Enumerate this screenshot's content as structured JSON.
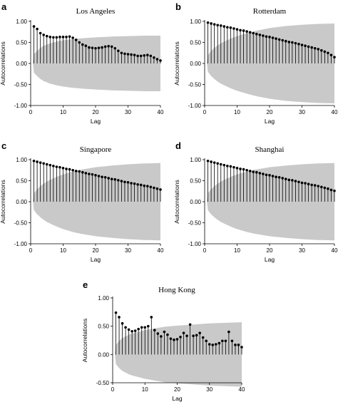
{
  "chart_data": [
    {
      "type": "stem",
      "panel_letter": "a",
      "title": "Los Angeles",
      "xlabel": "Lag",
      "ylabel": "Autocorrelations",
      "xlim": [
        0,
        40
      ],
      "ylim": [
        -1.0,
        1.0
      ],
      "xticks": [
        "0",
        "10",
        "20",
        "30",
        "40"
      ],
      "yticks": [
        "-1.00",
        "-0.50",
        "0.00",
        "0.50",
        "1.00"
      ],
      "x": [
        1,
        2,
        3,
        4,
        5,
        6,
        7,
        8,
        9,
        10,
        11,
        12,
        13,
        14,
        15,
        16,
        17,
        18,
        19,
        20,
        21,
        22,
        23,
        24,
        25,
        26,
        27,
        28,
        29,
        30,
        31,
        32,
        33,
        34,
        35,
        36,
        37,
        38,
        39,
        40
      ],
      "values": [
        0.88,
        0.82,
        0.72,
        0.68,
        0.65,
        0.63,
        0.62,
        0.62,
        0.63,
        0.63,
        0.63,
        0.64,
        0.61,
        0.56,
        0.5,
        0.45,
        0.42,
        0.38,
        0.37,
        0.36,
        0.37,
        0.38,
        0.4,
        0.41,
        0.4,
        0.36,
        0.3,
        0.25,
        0.23,
        0.22,
        0.21,
        0.2,
        0.18,
        0.18,
        0.19,
        0.2,
        0.18,
        0.14,
        0.1,
        0.07
      ],
      "confidence_band": {
        "x": [
          1,
          2,
          3,
          4,
          5,
          6,
          8,
          10,
          13,
          16,
          20,
          25,
          30,
          35,
          40
        ],
        "upper": [
          0.22,
          0.3,
          0.37,
          0.42,
          0.45,
          0.48,
          0.52,
          0.55,
          0.58,
          0.6,
          0.62,
          0.64,
          0.65,
          0.66,
          0.66
        ]
      }
    },
    {
      "type": "stem",
      "panel_letter": "b",
      "title": "Rotterdam",
      "xlabel": "Lag",
      "ylabel": "Autocorrelations",
      "xlim": [
        0,
        40
      ],
      "ylim": [
        -1.0,
        1.0
      ],
      "xticks": [
        "0",
        "10",
        "20",
        "30",
        "40"
      ],
      "yticks": [
        "-1.00",
        "-0.50",
        "0.00",
        "0.50",
        "1.00"
      ],
      "x": [
        1,
        2,
        3,
        4,
        5,
        6,
        7,
        8,
        9,
        10,
        11,
        12,
        13,
        14,
        15,
        16,
        17,
        18,
        19,
        20,
        21,
        22,
        23,
        24,
        25,
        26,
        27,
        28,
        29,
        30,
        31,
        32,
        33,
        34,
        35,
        36,
        37,
        38,
        39,
        40
      ],
      "values": [
        0.97,
        0.95,
        0.93,
        0.91,
        0.9,
        0.88,
        0.86,
        0.85,
        0.83,
        0.81,
        0.79,
        0.78,
        0.76,
        0.74,
        0.72,
        0.7,
        0.68,
        0.66,
        0.64,
        0.63,
        0.61,
        0.59,
        0.57,
        0.55,
        0.53,
        0.51,
        0.5,
        0.48,
        0.46,
        0.44,
        0.42,
        0.4,
        0.38,
        0.36,
        0.34,
        0.31,
        0.28,
        0.25,
        0.2,
        0.15
      ],
      "confidence_band": {
        "x": [
          1,
          2,
          3,
          4,
          5,
          6,
          8,
          10,
          13,
          16,
          20,
          25,
          30,
          35,
          40
        ],
        "upper": [
          0.2,
          0.3,
          0.37,
          0.43,
          0.48,
          0.52,
          0.59,
          0.65,
          0.72,
          0.78,
          0.84,
          0.89,
          0.92,
          0.94,
          0.95
        ]
      }
    },
    {
      "type": "stem",
      "panel_letter": "c",
      "title": "Singapore",
      "xlabel": "Lag",
      "ylabel": "Autocorrelations",
      "xlim": [
        0,
        40
      ],
      "ylim": [
        -1.0,
        1.0
      ],
      "xticks": [
        "0",
        "10",
        "20",
        "30",
        "40"
      ],
      "yticks": [
        "-1.00",
        "-0.50",
        "0.00",
        "0.50",
        "1.00"
      ],
      "x": [
        1,
        2,
        3,
        4,
        5,
        6,
        7,
        8,
        9,
        10,
        11,
        12,
        13,
        14,
        15,
        16,
        17,
        18,
        19,
        20,
        21,
        22,
        23,
        24,
        25,
        26,
        27,
        28,
        29,
        30,
        31,
        32,
        33,
        34,
        35,
        36,
        37,
        38,
        39,
        40
      ],
      "values": [
        0.97,
        0.95,
        0.93,
        0.91,
        0.89,
        0.87,
        0.85,
        0.83,
        0.82,
        0.8,
        0.78,
        0.77,
        0.75,
        0.73,
        0.72,
        0.7,
        0.68,
        0.66,
        0.65,
        0.63,
        0.61,
        0.59,
        0.58,
        0.56,
        0.54,
        0.53,
        0.51,
        0.49,
        0.47,
        0.46,
        0.44,
        0.43,
        0.41,
        0.4,
        0.38,
        0.37,
        0.35,
        0.33,
        0.31,
        0.29
      ],
      "confidence_band": {
        "x": [
          1,
          2,
          3,
          4,
          5,
          6,
          8,
          10,
          13,
          16,
          20,
          25,
          30,
          35,
          40
        ],
        "upper": [
          0.2,
          0.3,
          0.37,
          0.43,
          0.48,
          0.52,
          0.59,
          0.65,
          0.72,
          0.77,
          0.82,
          0.86,
          0.89,
          0.91,
          0.92
        ]
      }
    },
    {
      "type": "stem",
      "panel_letter": "d",
      "title": "Shanghai",
      "xlabel": "Lag",
      "ylabel": "Autocorrelations",
      "xlim": [
        0,
        40
      ],
      "ylim": [
        -1.0,
        1.0
      ],
      "xticks": [
        "0",
        "10",
        "20",
        "30",
        "40"
      ],
      "yticks": [
        "-1.00",
        "-0.50",
        "0.00",
        "0.50",
        "1.00"
      ],
      "x": [
        1,
        2,
        3,
        4,
        5,
        6,
        7,
        8,
        9,
        10,
        11,
        12,
        13,
        14,
        15,
        16,
        17,
        18,
        19,
        20,
        21,
        22,
        23,
        24,
        25,
        26,
        27,
        28,
        29,
        30,
        31,
        32,
        33,
        34,
        35,
        36,
        37,
        38,
        39,
        40
      ],
      "values": [
        0.97,
        0.95,
        0.93,
        0.91,
        0.89,
        0.87,
        0.85,
        0.84,
        0.82,
        0.8,
        0.78,
        0.77,
        0.75,
        0.73,
        0.71,
        0.7,
        0.68,
        0.66,
        0.64,
        0.63,
        0.61,
        0.59,
        0.58,
        0.56,
        0.54,
        0.52,
        0.51,
        0.49,
        0.47,
        0.45,
        0.44,
        0.42,
        0.4,
        0.39,
        0.37,
        0.35,
        0.33,
        0.31,
        0.28,
        0.26
      ],
      "confidence_band": {
        "x": [
          1,
          2,
          3,
          4,
          5,
          6,
          8,
          10,
          13,
          16,
          20,
          25,
          30,
          35,
          40
        ],
        "upper": [
          0.2,
          0.3,
          0.37,
          0.43,
          0.48,
          0.52,
          0.59,
          0.65,
          0.72,
          0.77,
          0.82,
          0.86,
          0.89,
          0.91,
          0.92
        ]
      }
    },
    {
      "type": "stem",
      "panel_letter": "e",
      "title": "Hong Kong",
      "xlabel": "Lag",
      "ylabel": "Autocorrelations",
      "xlim": [
        0,
        40
      ],
      "ylim": [
        -0.5,
        1.0
      ],
      "xticks": [
        "0",
        "10",
        "20",
        "30",
        "40"
      ],
      "yticks": [
        "-0.50",
        "0.00",
        "0.50",
        "1.00"
      ],
      "x": [
        1,
        2,
        3,
        4,
        5,
        6,
        7,
        8,
        9,
        10,
        11,
        12,
        13,
        14,
        15,
        16,
        17,
        18,
        19,
        20,
        21,
        22,
        23,
        24,
        25,
        26,
        27,
        28,
        29,
        30,
        31,
        32,
        33,
        34,
        35,
        36,
        37,
        38,
        39,
        40
      ],
      "values": [
        0.74,
        0.66,
        0.55,
        0.48,
        0.44,
        0.41,
        0.42,
        0.45,
        0.48,
        0.48,
        0.5,
        0.66,
        0.43,
        0.37,
        0.32,
        0.4,
        0.35,
        0.28,
        0.26,
        0.27,
        0.31,
        0.38,
        0.33,
        0.53,
        0.33,
        0.34,
        0.38,
        0.3,
        0.24,
        0.18,
        0.17,
        0.18,
        0.2,
        0.24,
        0.24,
        0.4,
        0.24,
        0.17,
        0.17,
        0.13
      ],
      "confidence_band": {
        "x": [
          1,
          2,
          3,
          4,
          5,
          6,
          8,
          10,
          13,
          16,
          20,
          25,
          30,
          35,
          40
        ],
        "upper": [
          0.17,
          0.24,
          0.29,
          0.32,
          0.35,
          0.37,
          0.4,
          0.43,
          0.46,
          0.49,
          0.51,
          0.53,
          0.55,
          0.56,
          0.57
        ]
      }
    }
  ]
}
